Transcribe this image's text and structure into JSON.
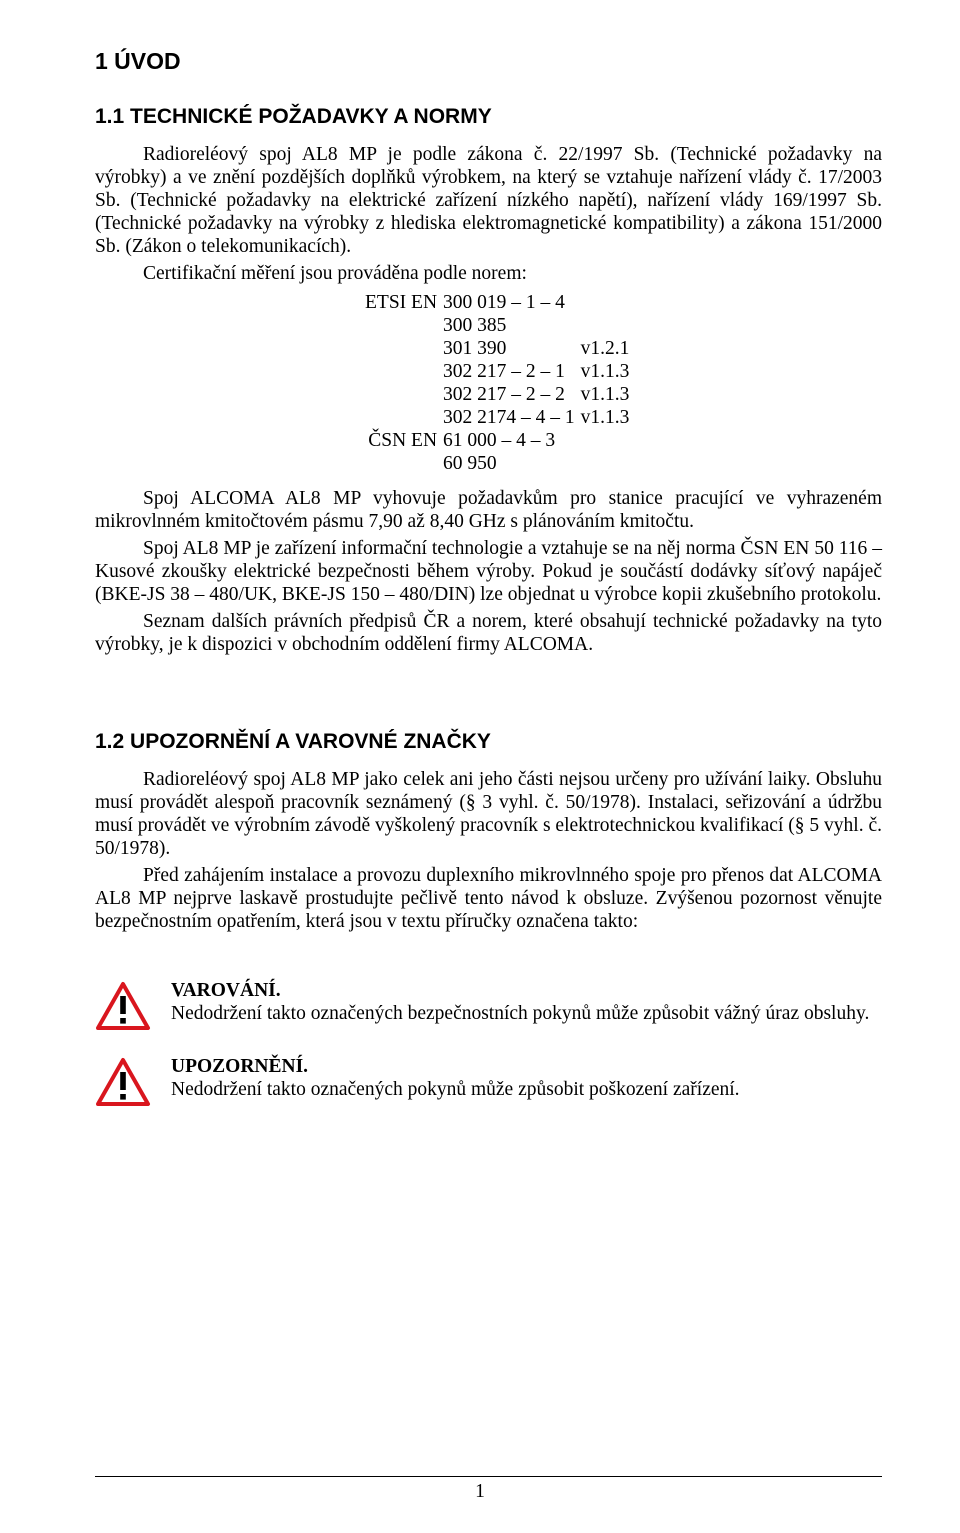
{
  "h1": "1   ÚVOD",
  "s1": {
    "heading": "1.1   TECHNICKÉ POŽADAVKY A NORMY",
    "p1": "Radioreléový spoj AL8 MP je podle zákona č. 22/1997 Sb. (Technické požadavky na výrobky) a ve znění pozdějších doplňků výrobkem, na který se vztahuje nařízení vlády č. 17/2003 Sb. (Technické požadavky na elektrické zařízení nízkého napětí), nařízení vlády 169/1997 Sb. (Technické požadavky na výrobky z hlediska elektromagnetické kompatibility) a zákona 151/2000 Sb. (Zákon o telekomunikacích).",
    "p1b": "Certifikační měření jsou prováděna podle norem:",
    "norms": [
      {
        "pfx": "ETSI EN",
        "code": "300 019 – 1 – 4",
        "ver": ""
      },
      {
        "pfx": "",
        "code": "300 385",
        "ver": ""
      },
      {
        "pfx": "",
        "code": "301 390",
        "ver": "v1.2.1"
      },
      {
        "pfx": "",
        "code": "302 217 – 2 – 1",
        "ver": "v1.1.3"
      },
      {
        "pfx": "",
        "code": "302 217 – 2 – 2",
        "ver": "v1.1.3"
      },
      {
        "pfx": "",
        "code": "302 2174 – 4 – 1",
        "ver": "v1.1.3"
      },
      {
        "pfx": "ČSN EN",
        "code": "61 000 – 4 – 3",
        "ver": ""
      },
      {
        "pfx": "",
        "code": "60 950",
        "ver": ""
      }
    ],
    "p2": "Spoj ALCOMA AL8 MP vyhovuje požadavkům pro stanice pracující ve vyhrazeném mikrovlnném kmitočtovém pásmu 7,90 až 8,40 GHz s plánováním kmitočtu.",
    "p3": "Spoj AL8 MP je zařízení informační technologie a vztahuje se na něj norma ČSN EN 50 116 – Kusové zkoušky elektrické bezpečnosti během výroby. Pokud je součástí dodávky síťový napáječ (BKE-JS 38 – 480/UK, BKE-JS 150 – 480/DIN) lze objednat u výrobce kopii zkušebního protokolu.",
    "p4": "Seznam dalších právních předpisů ČR a norem, které obsahují technické požadavky na tyto výrobky, je k dispozici v obchodním oddělení firmy ALCOMA."
  },
  "s2": {
    "heading": "1.2   UPOZORNĚNÍ A VAROVNÉ ZNAČKY",
    "p1": "Radioreléový spoj AL8 MP jako celek ani jeho části nejsou určeny pro užívání laiky. Obsluhu musí provádět alespoň pracovník seznámený (§ 3 vyhl. č. 50/1978). Instalaci, seřizování a údržbu musí provádět ve výrobním závodě vyškolený pracovník s elektrotechnickou kvalifikací (§ 5 vyhl. č. 50/1978).",
    "p2": "Před zahájením instalace a provozu duplexního mikrovlnného spoje pro přenos dat ALCOMA AL8 MP nejprve laskavě prostudujte pečlivě tento návod k obsluze. Zvýšenou pozornost věnujte bezpečnostním opatřením, která jsou v textu příručky označena takto:",
    "warn1_title": "VAROVÁNÍ.",
    "warn1_body": "Nedodržení takto označených bezpečnostních pokynů může způsobit vážný úraz obsluhy.",
    "warn2_title": "UPOZORNĚNÍ.",
    "warn2_body": "Nedodržení takto označených pokynů může způsobit poškození zařízení."
  },
  "icon": {
    "stroke": "#d9161e",
    "mark": "#000000"
  },
  "page_number": "1"
}
